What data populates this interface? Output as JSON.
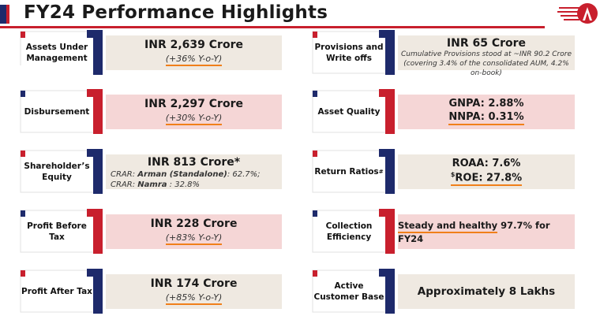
{
  "header": {
    "title": "FY24 Performance Highlights"
  },
  "left": [
    {
      "label": "Assets Under Management",
      "value": "INR 2,639 Crore",
      "sub": "(+36% Y-o-Y)"
    },
    {
      "label": "Disbursement",
      "value": "INR 2,297 Crore",
      "sub": "(+30% Y-o-Y)"
    },
    {
      "label": "Shareholder’s Equity",
      "value": "INR 813 Crore*",
      "line1_prefix": "CRAR: ",
      "line1_bold": "Arman (Standalone)",
      "line1_suffix": ": 62.7%;",
      "line2_prefix": "CRAR: ",
      "line2_bold": "Namra",
      "line2_suffix": " : 32.8%"
    },
    {
      "label": "Profit Before Tax",
      "value": "INR 228 Crore",
      "sub": "(+83% Y-o-Y)"
    },
    {
      "label": "Profit After Tax",
      "value": "INR 174 Crore",
      "sub": "(+85% Y-o-Y)"
    }
  ],
  "right": [
    {
      "label": "Provisions and Write offs",
      "value": "INR 65 Crore",
      "note1": "Cumulative Provisions stood at ~INR 90.2 Crore",
      "note2": "(covering 3.4% of the consolidated AUM, 4.2% on-book)"
    },
    {
      "label": "Asset Quality",
      "line1": "GNPA: 2.88%",
      "line2": "NNPA: 0.31%"
    },
    {
      "label": "Return Ratios",
      "label_sup": "#",
      "line1": "ROAA: 7.6%",
      "line2_sup": "$",
      "line2": "ROE: 27.8%"
    },
    {
      "label": "Collection Efficiency",
      "value_main": "Steady and healthy",
      "value_rest": " 97.7% for FY24"
    },
    {
      "label": "Active Customer Base",
      "value": "Approximately 8 Lakhs"
    }
  ],
  "colors": {
    "navy": "#1e2a6b",
    "red": "#c81f2d",
    "beige": "#efe9e1",
    "pink": "#f5d6d6",
    "underline": "#f07f1a"
  }
}
